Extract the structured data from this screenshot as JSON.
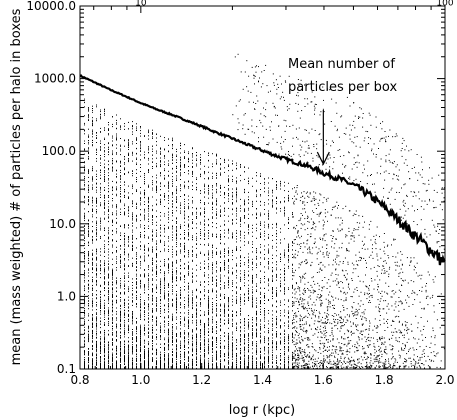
{
  "chart_data": {
    "type": "scatter",
    "title": "",
    "xlabel": "log r (kpc)",
    "ylabel": "mean (mass weighted) # of particles per halo in boxes",
    "x_scale": "linear",
    "y_scale": "log",
    "xlim": [
      0.8,
      2.0
    ],
    "ylim": [
      0.1,
      10000
    ],
    "x_ticks": [
      0.8,
      1.0,
      1.2,
      1.4,
      1.6,
      1.8,
      2.0
    ],
    "x_tick_labels": [
      "0.8",
      "1.0",
      "1.2",
      "1.4",
      "1.6",
      "1.8",
      "2.0"
    ],
    "y_ticks": [
      0.1,
      1,
      10,
      100,
      1000,
      10000
    ],
    "y_tick_labels": [
      "0.1",
      "1.0",
      "10.0",
      "100.0",
      "1000.0",
      "10000.0"
    ],
    "top_axis": {
      "label_values": [
        10,
        100
      ],
      "labels": [
        "10",
        "100"
      ]
    },
    "grid": false,
    "legend": "none",
    "annotation": {
      "lines": [
        "Mean number of",
        "particles per box"
      ],
      "arrow_x": 1.6,
      "arrow_y_tip": 55
    },
    "series": [
      {
        "kind": "line",
        "x": [
          0.8,
          0.85,
          0.9,
          0.95,
          1.0,
          1.05,
          1.1,
          1.15,
          1.2,
          1.25,
          1.3,
          1.35,
          1.4,
          1.45,
          1.5,
          1.52,
          1.55,
          1.58,
          1.6,
          1.65,
          1.7,
          1.75,
          1.8,
          1.85,
          1.9,
          1.95,
          2.0
        ],
        "y": [
          1100,
          880,
          700,
          570,
          460,
          380,
          320,
          265,
          220,
          180,
          150,
          123,
          102,
          85,
          72,
          68,
          62,
          55,
          50,
          42,
          34,
          25,
          17,
          11,
          7,
          4.5,
          2.8
        ]
      },
      {
        "kind": "scatter",
        "description_points": "Dense cloud of individual particle box points spanning 0.1 to ~500, densest at large r and low counts, with vertical striping at small r."
      }
    ],
    "colors": {
      "background": "#ffffff",
      "foreground": "#000000"
    }
  }
}
